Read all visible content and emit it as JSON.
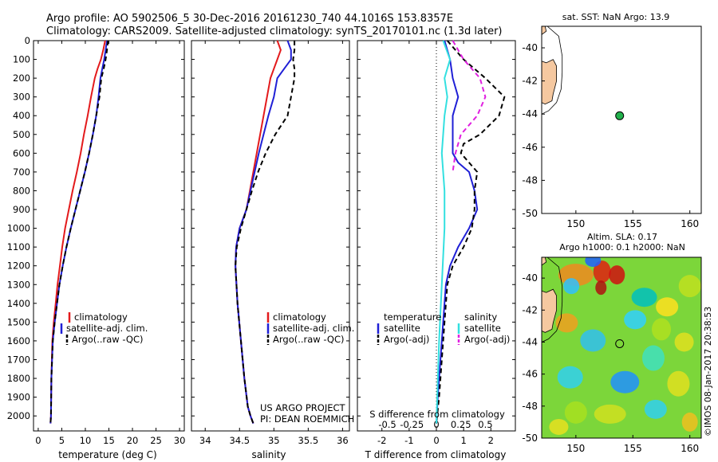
{
  "header": {
    "line1": "Argo profile: AO 5902506_5 30-Dec-2016 20161230_740 44.1016S 153.8357E",
    "line2": "Climatology: CARS2009. Satellite-adjusted climatology: synTS_20170101.nc (1.3d later)"
  },
  "colors": {
    "climatology": "#e31a1c",
    "satellite": "#1f1fd6",
    "argo": "#000000",
    "sat_salinity": "#33e0e0",
    "argo_salinity": "#e020e0",
    "land": "#f5c8a0"
  },
  "chart_data": [
    {
      "type": "line",
      "id": "temperature",
      "xlabel": "temperature (deg C)",
      "xlim": [
        -1,
        31
      ],
      "xticks": [
        "0",
        "5",
        "10",
        "15",
        "20",
        "25",
        "30"
      ],
      "ylim": [
        0,
        2080
      ],
      "yticks": [
        "0",
        "100",
        "200",
        "300",
        "400",
        "500",
        "600",
        "700",
        "800",
        "900",
        "1000",
        "1100",
        "1200",
        "1300",
        "1400",
        "1500",
        "1600",
        "1700",
        "1800",
        "1900",
        "2000"
      ],
      "legend": [
        "climatology",
        "satellite-adj. clim.",
        "Argo(..raw -QC)"
      ],
      "series": [
        {
          "name": "climatology",
          "color": "#e31a1c",
          "dash": "",
          "x": [
            14.2,
            13.8,
            13.3,
            12.6,
            12.0,
            11.2,
            10.5,
            9.7,
            9.0,
            8.2,
            7.3,
            6.5,
            5.7,
            5.1,
            4.6,
            4.1,
            3.7,
            3.3,
            3.0,
            2.8,
            2.7,
            2.6
          ],
          "y": [
            0,
            50,
            100,
            150,
            200,
            300,
            400,
            500,
            600,
            700,
            800,
            900,
            1000,
            1100,
            1200,
            1300,
            1400,
            1500,
            1600,
            1800,
            2000,
            2040
          ]
        },
        {
          "name": "satellite-adj. clim.",
          "color": "#1f1fd6",
          "dash": "",
          "x": [
            14.6,
            14.3,
            14.0,
            13.6,
            13.2,
            12.8,
            12.3,
            11.6,
            10.8,
            9.9,
            8.9,
            7.9,
            6.9,
            6.0,
            5.2,
            4.5,
            4.0,
            3.5,
            3.1,
            2.8,
            2.7,
            2.6
          ],
          "y": [
            0,
            50,
            100,
            150,
            200,
            300,
            400,
            500,
            600,
            700,
            800,
            900,
            1000,
            1100,
            1200,
            1300,
            1400,
            1500,
            1600,
            1800,
            2000,
            2040
          ]
        },
        {
          "name": "Argo(..raw -QC)",
          "color": "#000000",
          "dash": "6,4",
          "x": [
            14.8,
            14.6,
            14.3,
            13.9,
            13.4,
            13.0,
            12.3,
            11.6,
            10.8,
            9.9,
            8.9,
            7.9,
            6.9,
            6.0,
            5.2,
            4.5,
            4.0,
            3.5,
            3.1,
            2.8,
            2.7,
            2.6
          ],
          "y": [
            0,
            50,
            100,
            150,
            200,
            300,
            400,
            500,
            600,
            700,
            800,
            900,
            1000,
            1100,
            1200,
            1300,
            1400,
            1500,
            1600,
            1800,
            2000,
            2040
          ]
        }
      ]
    },
    {
      "type": "line",
      "id": "salinity",
      "xlabel": "salinity",
      "xlim": [
        33.8,
        36.1
      ],
      "xticks": [
        "34",
        "34.5",
        "35",
        "35.5",
        "36"
      ],
      "ylim": [
        0,
        2080
      ],
      "legend": [
        "climatology",
        "satellite-adj. clim.",
        "Argo(..raw -QC)"
      ],
      "series": [
        {
          "name": "climatology",
          "color": "#e31a1c",
          "dash": "",
          "x": [
            35.05,
            35.1,
            35.05,
            35.0,
            34.95,
            34.9,
            34.85,
            34.8,
            34.75,
            34.7,
            34.65,
            34.6,
            34.5,
            34.45,
            34.44,
            34.47,
            34.52,
            34.57,
            34.62,
            34.66,
            34.7
          ],
          "y": [
            0,
            50,
            100,
            150,
            200,
            300,
            400,
            500,
            600,
            700,
            800,
            900,
            1000,
            1100,
            1200,
            1400,
            1600,
            1800,
            1950,
            2000,
            2040
          ]
        },
        {
          "name": "satellite-adj. clim.",
          "color": "#1f1fd6",
          "dash": "",
          "x": [
            35.2,
            35.25,
            35.25,
            35.15,
            35.05,
            35.0,
            34.92,
            34.85,
            34.78,
            34.72,
            34.66,
            34.6,
            34.5,
            34.45,
            34.44,
            34.47,
            34.52,
            34.57,
            34.62,
            34.66,
            34.7
          ],
          "y": [
            0,
            50,
            100,
            150,
            200,
            300,
            400,
            500,
            600,
            700,
            800,
            900,
            1000,
            1100,
            1200,
            1400,
            1600,
            1800,
            1950,
            2000,
            2040
          ]
        },
        {
          "name": "Argo(..raw -QC)",
          "color": "#000000",
          "dash": "6,4",
          "x": [
            35.3,
            35.3,
            35.28,
            35.3,
            35.3,
            35.25,
            35.2,
            35.02,
            34.88,
            34.77,
            34.68,
            34.6,
            34.52,
            34.46,
            34.44,
            34.47,
            34.52,
            34.57,
            34.62,
            34.66,
            34.7
          ],
          "y": [
            0,
            50,
            100,
            150,
            200,
            300,
            400,
            500,
            600,
            700,
            800,
            900,
            1000,
            1100,
            1200,
            1400,
            1600,
            1800,
            1950,
            2000,
            2040
          ]
        }
      ],
      "annotation": [
        "US ARGO PROJECT",
        "PI: DEAN ROEMMICH"
      ]
    },
    {
      "type": "line",
      "id": "difference",
      "xlabel": "T difference from climatology",
      "xlabel_top": "S difference from climatology",
      "xlim": [
        -2.9,
        2.9
      ],
      "xticks": [
        "-2",
        "-1",
        "0",
        "1",
        "2"
      ],
      "xticks_top": [
        "-0.5",
        "-0.25",
        "0",
        "0.25",
        "0.5"
      ],
      "ylim": [
        0,
        2080
      ],
      "legend_temperature": {
        "title": "temperature",
        "items": [
          "satellite",
          "Argo(-adj)"
        ]
      },
      "legend_salinity": {
        "title": "salinity",
        "items": [
          "satellite",
          "Argo(-adj)"
        ]
      },
      "series": [
        {
          "name": "satellite",
          "color": "#1f1fd6",
          "dash": "",
          "x": [
            0.3,
            0.5,
            0.6,
            0.8,
            0.6,
            0.6,
            0.6,
            0.6,
            0.8,
            1.2,
            1.4,
            1.5,
            1.2,
            0.8,
            0.5,
            0.35,
            0.25,
            0.15,
            0.05,
            0.0
          ],
          "y": [
            0,
            100,
            200,
            300,
            400,
            500,
            550,
            600,
            650,
            700,
            800,
            900,
            1000,
            1100,
            1200,
            1300,
            1500,
            1700,
            1900,
            2040
          ]
        },
        {
          "name": "Argo(-adj)",
          "color": "#000000",
          "dash": "6,4",
          "x": [
            0.4,
            1.0,
            1.8,
            2.5,
            2.3,
            1.6,
            1.0,
            0.9,
            1.2,
            1.5,
            1.4,
            1.4,
            1.3,
            1.0,
            0.6,
            0.4,
            0.3,
            0.2,
            0.1,
            0.0
          ],
          "y": [
            0,
            100,
            200,
            300,
            400,
            500,
            550,
            600,
            650,
            700,
            800,
            900,
            1000,
            1100,
            1200,
            1300,
            1500,
            1700,
            1900,
            2040
          ]
        },
        {
          "name": "satellite",
          "color": "#33e0e0",
          "dash": "",
          "x": [
            0.25,
            0.5,
            0.3,
            0.4,
            0.3,
            0.2,
            0.3,
            0.3,
            0.2,
            0.1,
            0.0
          ],
          "y": [
            0,
            100,
            200,
            300,
            400,
            600,
            800,
            1000,
            1300,
            1600,
            2040
          ]
        },
        {
          "name": "Argo(-adj)",
          "color": "#e020e0",
          "dash": "6,4",
          "x": [
            0.6,
            1.0,
            1.6,
            1.8,
            1.5,
            0.9,
            0.7,
            0.6
          ],
          "y": [
            0,
            100,
            200,
            300,
            400,
            500,
            600,
            700
          ]
        }
      ]
    },
    {
      "type": "scatter",
      "id": "sst-map",
      "title": "sat. SST: NaN Argo: 13.9",
      "xlim": [
        147,
        161
      ],
      "ylim": [
        -50,
        -38.7
      ],
      "xticks": [
        "150",
        "155",
        "160"
      ],
      "yticks": [
        "-40",
        "-42",
        "-44",
        "-46",
        "-48",
        "-50"
      ],
      "point": {
        "lon": 153.84,
        "lat": -44.1
      }
    },
    {
      "type": "heatmap",
      "id": "sla-map",
      "title_line1": "Altim. SLA: 0.17",
      "title_line2": "Argo h1000: 0.1 h2000: NaN",
      "xlim": [
        147,
        161
      ],
      "ylim": [
        -50,
        -38.7
      ],
      "xticks": [
        "150",
        "155",
        "160"
      ],
      "yticks": [
        "-40",
        "-42",
        "-44",
        "-46",
        "-48",
        "-50"
      ],
      "point": {
        "lon": 153.84,
        "lat": -44.1
      },
      "credit": "©IMOS 08-Jan-2017 20:38:53"
    }
  ]
}
